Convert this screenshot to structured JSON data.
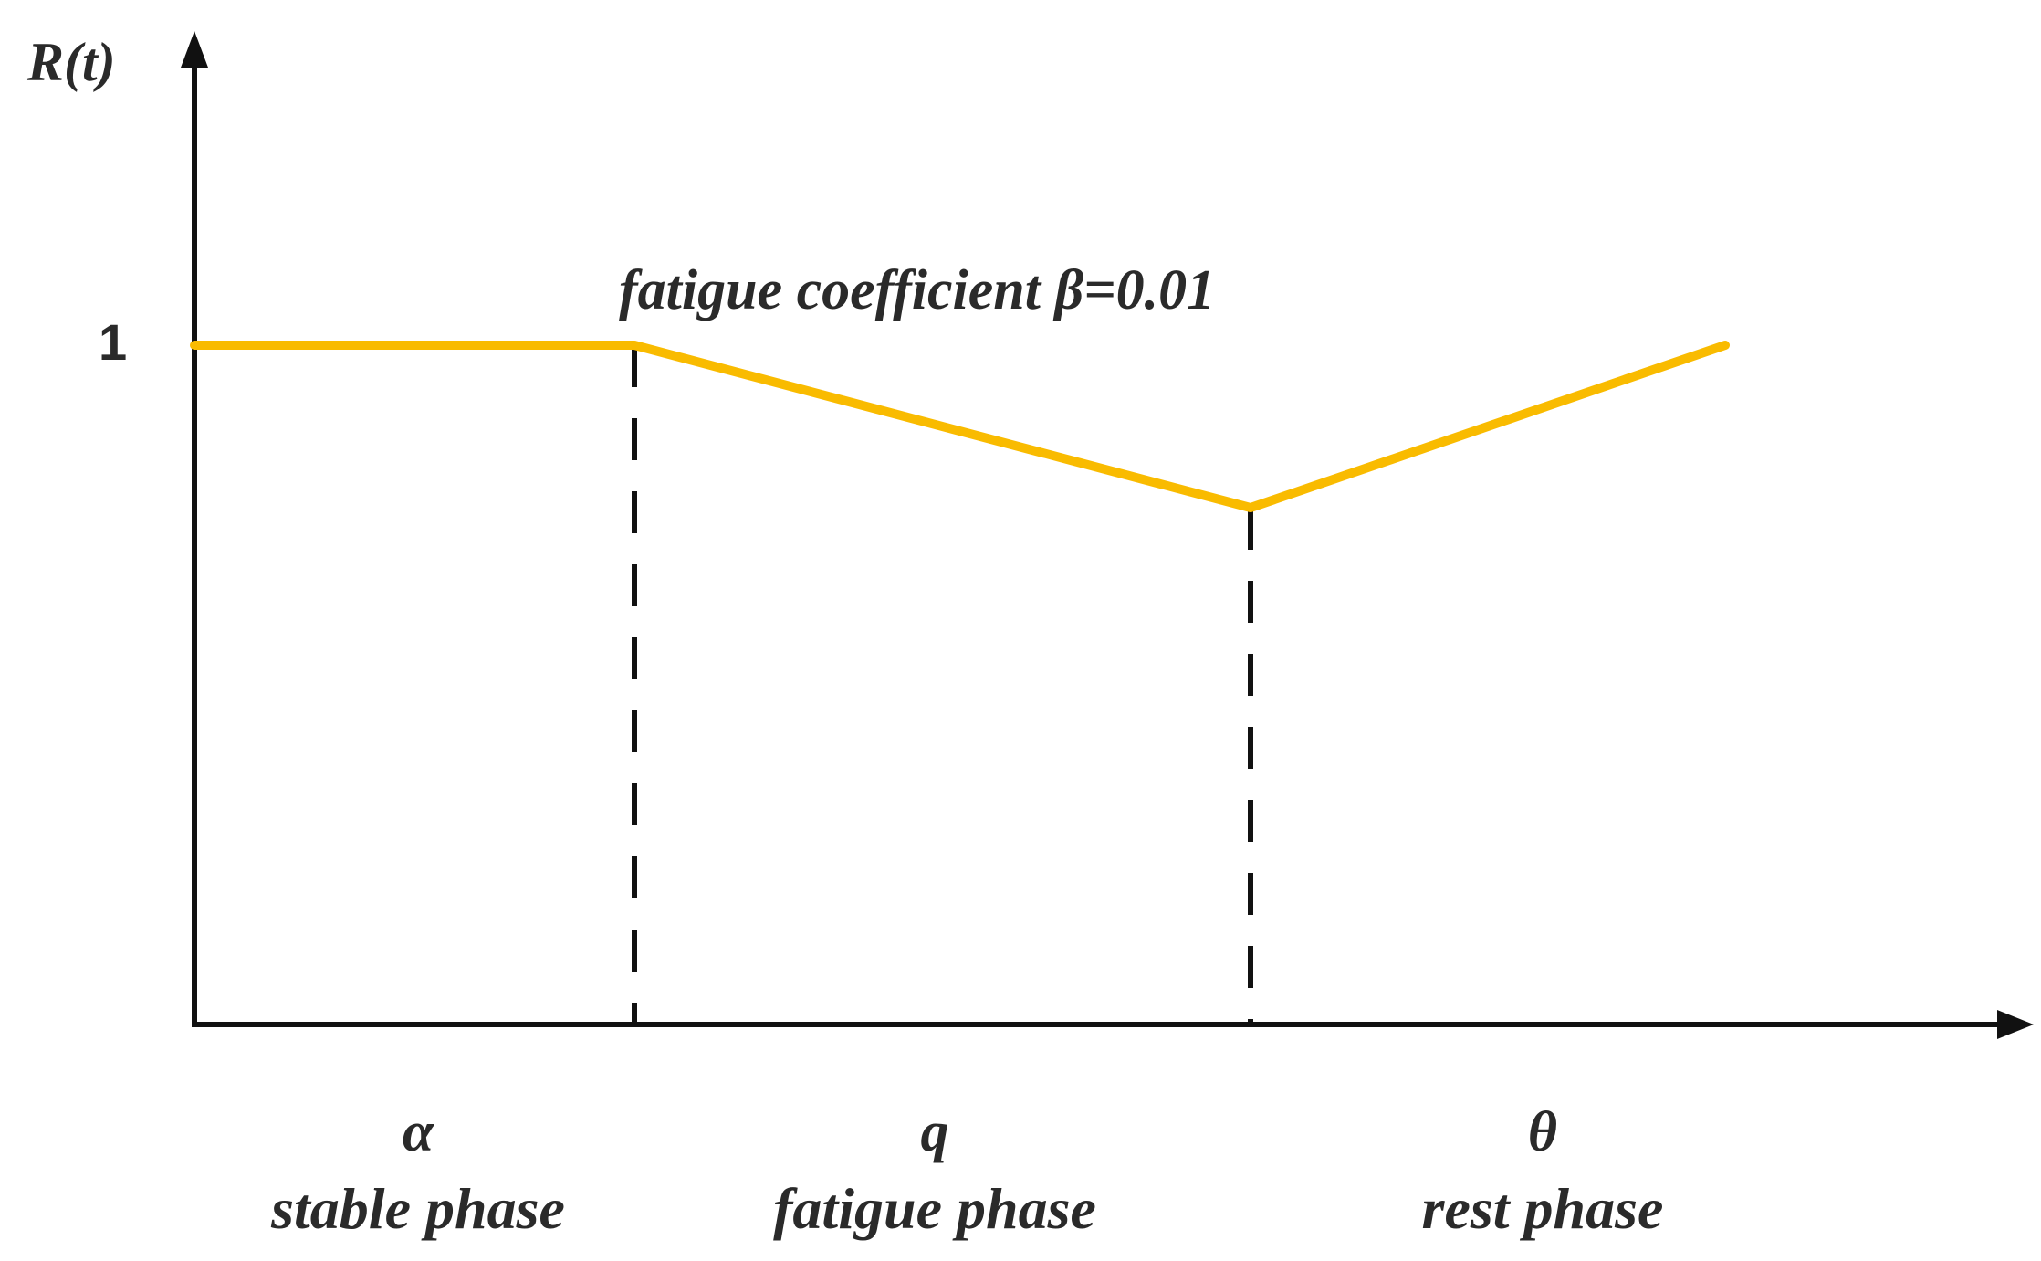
{
  "y_axis_label": "R(t)",
  "y_tick_label": "1",
  "annotation": "fatigue coefficient β=0.01",
  "phases": [
    {
      "symbol": "α",
      "name": "stable phase"
    },
    {
      "symbol": "q",
      "name": "fatigue phase"
    },
    {
      "symbol": "θ",
      "name": "rest phase"
    }
  ],
  "colors": {
    "curve": "#F9BB00",
    "axes": "#111111",
    "text": "#2a2a2a"
  }
}
